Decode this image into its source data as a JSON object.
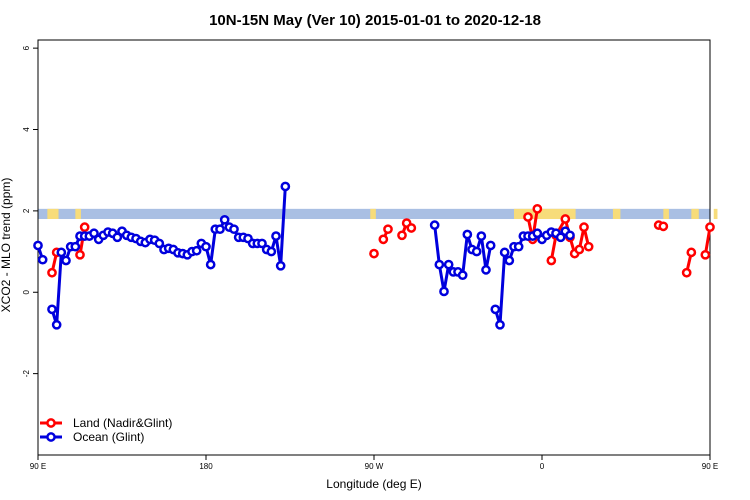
{
  "chart_data": {
    "type": "line",
    "title": "10N-15N May (Ver 10)   2015-01-01 to 2020-12-18",
    "xlabel": "Longitude (deg E)",
    "ylabel": "XCO2 - MLO trend (ppm)",
    "xlim": [
      90,
      450
    ],
    "ylim": [
      -4,
      6.2
    ],
    "x_ticks": [
      {
        "value": 90,
        "label": "90 E"
      },
      {
        "value": 180,
        "label": "180"
      },
      {
        "value": 270,
        "label": "90 W"
      },
      {
        "value": 360,
        "label": "0"
      },
      {
        "value": 450,
        "label": "90 E"
      },
      {
        "value": 540,
        "label": "180"
      }
    ],
    "y_ticks": [
      {
        "value": -2,
        "label": "-2"
      },
      {
        "value": 0,
        "label": "0"
      },
      {
        "value": 2,
        "label": "2"
      },
      {
        "value": 4,
        "label": "4"
      },
      {
        "value": 6,
        "label": "6"
      }
    ],
    "land_band": {
      "y_min": 1.8,
      "y_max": 2.05
    },
    "legend": {
      "position": "bottom-left"
    },
    "colors": {
      "land": "#ff0000",
      "ocean": "#0000dd",
      "band_ocean": "#a9bfe3",
      "band_land": "#f7dc7a"
    },
    "series": [
      {
        "name": "Land (Nadir&Glint)",
        "color": "#ff0000",
        "segments": [
          [
            [
              97.5,
              0.48
            ],
            [
              100,
              0.98
            ]
          ],
          [
            [
              112.5,
              0.92
            ],
            [
              115,
              1.6
            ]
          ],
          [
            [
              270,
              0.95
            ]
          ],
          [
            [
              275,
              1.3
            ],
            [
              277.5,
              1.55
            ]
          ],
          [
            [
              285,
              1.4
            ],
            [
              287.5,
              1.7
            ],
            [
              290,
              1.58
            ]
          ],
          [
            [
              352.5,
              1.85
            ],
            [
              355,
              1.3
            ],
            [
              357.5,
              2.05
            ]
          ],
          [
            [
              365,
              0.78
            ],
            [
              367.5,
              1.4
            ],
            [
              372.5,
              1.8
            ],
            [
              375,
              1.35
            ],
            [
              377.5,
              0.95
            ],
            [
              380,
              1.05
            ],
            [
              382.5,
              1.6
            ],
            [
              385,
              1.12
            ]
          ],
          [
            [
              422.5,
              1.65
            ],
            [
              425,
              1.62
            ]
          ],
          [
            [
              437.5,
              0.48
            ],
            [
              440,
              0.98
            ]
          ],
          [
            [
              447.5,
              0.92
            ],
            [
              450,
              1.6
            ]
          ]
        ]
      },
      {
        "name": "Ocean (Glint)",
        "color": "#0000dd",
        "segments": [
          [
            [
              90,
              1.15
            ],
            [
              92.5,
              0.8
            ]
          ],
          [
            [
              97.5,
              -0.42
            ],
            [
              100,
              -0.8
            ],
            [
              102.5,
              0.98
            ],
            [
              105,
              0.78
            ],
            [
              107.5,
              1.12
            ],
            [
              110,
              1.12
            ],
            [
              112.5,
              1.38
            ],
            [
              115,
              1.38
            ],
            [
              117.5,
              1.38
            ],
            [
              120,
              1.45
            ],
            [
              122.5,
              1.3
            ],
            [
              125,
              1.4
            ],
            [
              127.5,
              1.48
            ],
            [
              130,
              1.45
            ],
            [
              132.5,
              1.35
            ],
            [
              135,
              1.5
            ],
            [
              137.5,
              1.4
            ],
            [
              140,
              1.35
            ],
            [
              142.5,
              1.32
            ],
            [
              145,
              1.25
            ],
            [
              147.5,
              1.22
            ],
            [
              150,
              1.3
            ],
            [
              152.5,
              1.28
            ],
            [
              155,
              1.2
            ],
            [
              157.5,
              1.05
            ],
            [
              160,
              1.08
            ],
            [
              162.5,
              1.05
            ],
            [
              165,
              0.97
            ],
            [
              167.5,
              0.95
            ],
            [
              170,
              0.92
            ],
            [
              172.5,
              1.0
            ],
            [
              175,
              1.02
            ],
            [
              177.5,
              1.2
            ],
            [
              180,
              1.12
            ],
            [
              182.5,
              0.68
            ],
            [
              185,
              1.55
            ],
            [
              187.5,
              1.55
            ],
            [
              190,
              1.78
            ],
            [
              192.5,
              1.6
            ],
            [
              195,
              1.55
            ],
            [
              197.5,
              1.35
            ],
            [
              200,
              1.35
            ],
            [
              202.5,
              1.32
            ],
            [
              205,
              1.2
            ],
            [
              207.5,
              1.2
            ],
            [
              210,
              1.2
            ],
            [
              212.5,
              1.05
            ],
            [
              215,
              1.0
            ],
            [
              217.5,
              1.38
            ],
            [
              220,
              0.65
            ],
            [
              222.5,
              2.6
            ]
          ],
          [
            [
              302.5,
              1.65
            ],
            [
              305,
              0.68
            ],
            [
              307.5,
              0.02
            ],
            [
              310,
              0.68
            ],
            [
              312.5,
              0.5
            ],
            [
              315,
              0.5
            ],
            [
              317.5,
              0.42
            ],
            [
              320,
              1.42
            ],
            [
              322.5,
              1.05
            ],
            [
              325,
              1.0
            ],
            [
              327.5,
              1.38
            ],
            [
              330,
              0.55
            ],
            [
              332.5,
              1.15
            ]
          ],
          [
            [
              335,
              -0.42
            ],
            [
              337.5,
              -0.8
            ],
            [
              340,
              0.98
            ],
            [
              342.5,
              0.78
            ],
            [
              345,
              1.12
            ],
            [
              347.5,
              1.12
            ],
            [
              350,
              1.38
            ],
            [
              352.5,
              1.38
            ],
            [
              355,
              1.38
            ],
            [
              357.5,
              1.45
            ],
            [
              360,
              1.3
            ],
            [
              362.5,
              1.4
            ],
            [
              365,
              1.48
            ],
            [
              367.5,
              1.45
            ],
            [
              370,
              1.35
            ],
            [
              372.5,
              1.5
            ],
            [
              375,
              1.4
            ]
          ]
        ]
      }
    ]
  }
}
